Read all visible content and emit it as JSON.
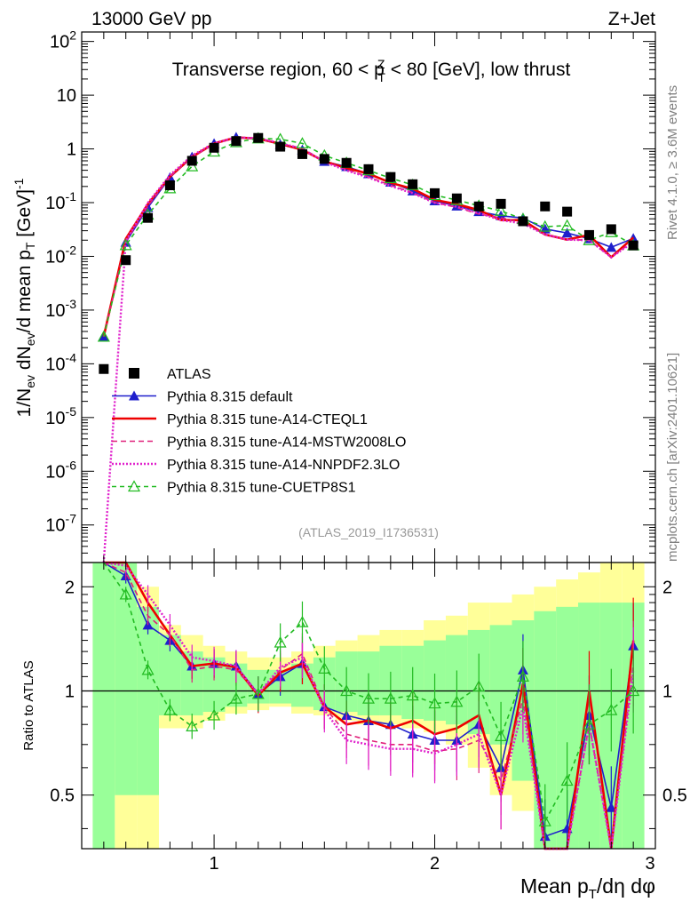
{
  "header": {
    "energy_label": "13000 GeV pp",
    "process_label": "Z+Jet"
  },
  "side_labels": {
    "rivet": "Rivet 4.1.0, ≥ 3.6M events",
    "mcplots": "mcplots.cern.ch [arXiv:2401.10621]"
  },
  "chart_data": {
    "type": "line",
    "title": "Transverse region, 60 < p_T^Z < 80 [GeV], low thrust",
    "title_parts": {
      "before": "Transverse region, 60 < p",
      "sub": "T",
      "sup": "Z",
      "after": " < 80 [GeV], low thrust"
    },
    "analysis_id": "(ATLAS_2019_I1736531)",
    "xlabel": "Mean p_T/dη dφ",
    "xlabel_parts": {
      "a": "Mean p",
      "sub": "T",
      "b": "/dη dφ"
    },
    "ylabel": "1/N_ev dN_ev/d mean p_T [GeV]^-1",
    "ylabel_parts": {
      "a": "1/N",
      "b": "ev",
      "c": " dN",
      "d": "ev",
      "e": "/d mean p",
      "f": "T",
      "g": " [GeV]",
      "h": "-1"
    },
    "ratio_ylabel": "Ratio to ATLAS",
    "xlim": [
      0.4,
      3.0
    ],
    "ylim": [
      2e-08,
      150
    ],
    "ratio_ylim": [
      0.35,
      2.35
    ],
    "x_ticks": [
      "1",
      "2",
      "3"
    ],
    "y_ticks": [
      "10^-7",
      "10^-6",
      "10^-5",
      "10^-4",
      "10^-3",
      "10^-2",
      "10^-1",
      "1",
      "10",
      "10^2"
    ],
    "ratio_ticks": [
      "0.5",
      "1",
      "2"
    ],
    "x": [
      0.5,
      0.6,
      0.7,
      0.8,
      0.9,
      1.0,
      1.1,
      1.2,
      1.3,
      1.4,
      1.5,
      1.6,
      1.7,
      1.8,
      1.9,
      2.0,
      2.1,
      2.2,
      2.3,
      2.4,
      2.5,
      2.6,
      2.7,
      2.8,
      2.9
    ],
    "bin_edges": [
      0.45,
      0.55,
      0.65,
      0.75,
      0.85,
      0.95,
      1.05,
      1.15,
      1.25,
      1.35,
      1.45,
      1.55,
      1.65,
      1.75,
      1.85,
      1.95,
      2.05,
      2.15,
      2.25,
      2.35,
      2.45,
      2.55,
      2.65,
      2.75,
      2.85,
      2.95
    ],
    "data": {
      "name": "ATLAS",
      "values": [
        8e-05,
        0.0085,
        0.052,
        0.21,
        0.6,
        1.05,
        1.4,
        1.6,
        1.1,
        0.8,
        0.65,
        0.55,
        0.42,
        0.3,
        0.22,
        0.15,
        0.12,
        0.085,
        0.095,
        0.045,
        0.085,
        0.068,
        0.025,
        0.032,
        0.016
      ],
      "band_green": [
        [
          0.35,
          2.35
        ],
        [
          0.5,
          2.35
        ],
        [
          0.5,
          1.75
        ],
        [
          0.85,
          1.45
        ],
        [
          0.85,
          1.3
        ],
        [
          0.87,
          1.25
        ],
        [
          0.9,
          1.2
        ],
        [
          0.92,
          1.15
        ],
        [
          0.92,
          1.15
        ],
        [
          0.9,
          1.2
        ],
        [
          0.88,
          1.25
        ],
        [
          0.87,
          1.3
        ],
        [
          0.85,
          1.3
        ],
        [
          0.85,
          1.35
        ],
        [
          0.83,
          1.35
        ],
        [
          0.82,
          1.4
        ],
        [
          0.8,
          1.45
        ],
        [
          0.75,
          1.5
        ],
        [
          0.7,
          1.55
        ],
        [
          0.55,
          1.6
        ],
        [
          0.35,
          1.7
        ],
        [
          0.35,
          1.75
        ],
        [
          0.35,
          1.8
        ],
        [
          0.35,
          1.8
        ],
        [
          0.35,
          1.8
        ]
      ],
      "band_yellow": [
        [
          0.35,
          2.35
        ],
        [
          0.35,
          2.35
        ],
        [
          0.35,
          2.0
        ],
        [
          0.78,
          1.55
        ],
        [
          0.78,
          1.45
        ],
        [
          0.82,
          1.35
        ],
        [
          0.86,
          1.3
        ],
        [
          0.88,
          1.25
        ],
        [
          0.9,
          1.25
        ],
        [
          0.86,
          1.3
        ],
        [
          0.85,
          1.35
        ],
        [
          0.82,
          1.4
        ],
        [
          0.8,
          1.45
        ],
        [
          0.8,
          1.5
        ],
        [
          0.78,
          1.5
        ],
        [
          0.76,
          1.6
        ],
        [
          0.7,
          1.65
        ],
        [
          0.6,
          1.8
        ],
        [
          0.5,
          1.8
        ],
        [
          0.45,
          1.9
        ],
        [
          0.35,
          2.0
        ],
        [
          0.35,
          2.1
        ],
        [
          0.35,
          2.2
        ],
        [
          0.35,
          2.35
        ],
        [
          0.35,
          2.35
        ]
      ]
    },
    "series": [
      {
        "name": "Pythia 8.315 default",
        "color": "#1f1fcc",
        "dash": "",
        "marker": "triangle-filled",
        "ratio": [
          4.0,
          2.15,
          1.55,
          1.4,
          1.18,
          1.2,
          1.18,
          0.98,
          1.1,
          1.2,
          0.9,
          0.85,
          0.82,
          0.8,
          0.75,
          0.72,
          0.72,
          0.8,
          0.6,
          1.15,
          0.38,
          0.4,
          0.85,
          0.46,
          1.35
        ]
      },
      {
        "name": "Pythia 8.315 tune-A14-CTEQL1",
        "color": "#ee0000",
        "dash": "",
        "marker": "none",
        "ratio": [
          4.0,
          2.5,
          1.8,
          1.45,
          1.18,
          1.2,
          1.17,
          0.97,
          1.13,
          1.2,
          0.9,
          0.8,
          0.82,
          0.78,
          0.82,
          0.75,
          0.78,
          0.85,
          0.5,
          1.05,
          0.3,
          0.3,
          1.0,
          0.3,
          1.4
        ]
      },
      {
        "name": "Pythia 8.315 tune-A14-MSTW2008LO",
        "color": "#e0207a",
        "dash": "6,4",
        "marker": "none",
        "ratio": [
          4.0,
          2.2,
          1.65,
          1.45,
          1.15,
          1.18,
          1.15,
          0.98,
          1.15,
          1.28,
          0.9,
          0.75,
          0.72,
          0.7,
          0.7,
          0.67,
          0.68,
          0.72,
          0.55,
          0.95,
          0.3,
          0.3,
          0.8,
          0.3,
          1.2
        ]
      },
      {
        "name": "Pythia 8.315 tune-A14-NNPDF2.3LO",
        "color": "#e020cc",
        "dash": "2,2",
        "marker": "none",
        "ratio": [
          4.0,
          2.3,
          1.9,
          1.55,
          1.25,
          1.22,
          1.18,
          0.98,
          1.17,
          1.25,
          0.88,
          0.72,
          0.7,
          0.68,
          0.68,
          0.66,
          0.7,
          0.75,
          0.5,
          0.9,
          0.3,
          0.3,
          0.8,
          0.3,
          1.15
        ]
      },
      {
        "name": "Pythia 8.315 tune-CUETP8S1",
        "color": "#22bb22",
        "dash": "5,4",
        "marker": "triangle-open",
        "ratio": [
          4.0,
          1.9,
          1.15,
          0.88,
          0.79,
          0.85,
          0.95,
          0.98,
          1.38,
          1.58,
          1.16,
          1.0,
          0.95,
          0.95,
          0.97,
          0.92,
          0.93,
          1.03,
          0.74,
          1.1,
          0.42,
          0.55,
          0.8,
          0.88,
          1.0
        ]
      }
    ],
    "legend_position": "lower-left"
  }
}
